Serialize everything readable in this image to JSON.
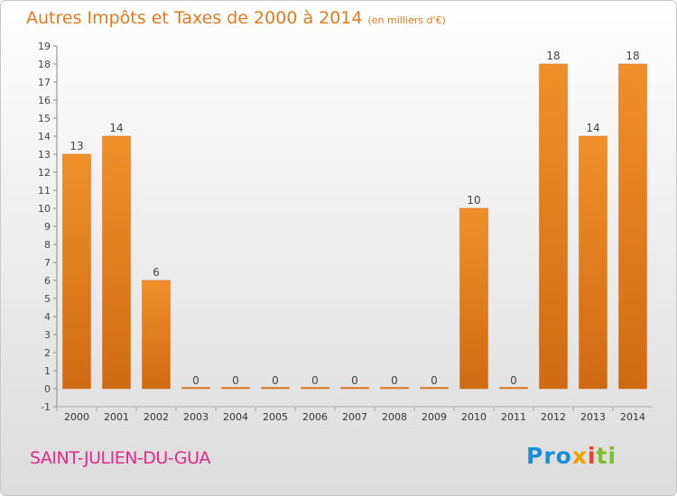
{
  "title": "Autres Impôts et Taxes de 2000 à 2014",
  "unit": "(en milliers d'€)",
  "commune": "SAINT-JULIEN-DU-GUA",
  "logo": {
    "p1": "Pro",
    "p2": "x",
    "p3": "i",
    "p4": "ti"
  },
  "colors": {
    "bar": "#f0902a",
    "bar_dark": "#d06a12",
    "title": "#e07a1c",
    "commune": "#e02a8a"
  },
  "chart_data": {
    "type": "bar",
    "categories": [
      "2000",
      "2001",
      "2002",
      "2003",
      "2004",
      "2005",
      "2006",
      "2007",
      "2008",
      "2009",
      "2010",
      "2011",
      "2012",
      "2013",
      "2014"
    ],
    "values": [
      13,
      14,
      6,
      0,
      0,
      0,
      0,
      0,
      0,
      0,
      10,
      0,
      18,
      14,
      18
    ],
    "title": "Autres Impôts et Taxes de 2000 à 2014",
    "subtitle": "(en milliers d'€)",
    "ylim": [
      -1,
      19
    ],
    "yticks": [
      -1,
      0,
      1,
      2,
      3,
      4,
      5,
      6,
      7,
      8,
      9,
      10,
      11,
      12,
      13,
      14,
      15,
      16,
      17,
      18,
      19
    ],
    "grid": false,
    "legend": "none"
  }
}
